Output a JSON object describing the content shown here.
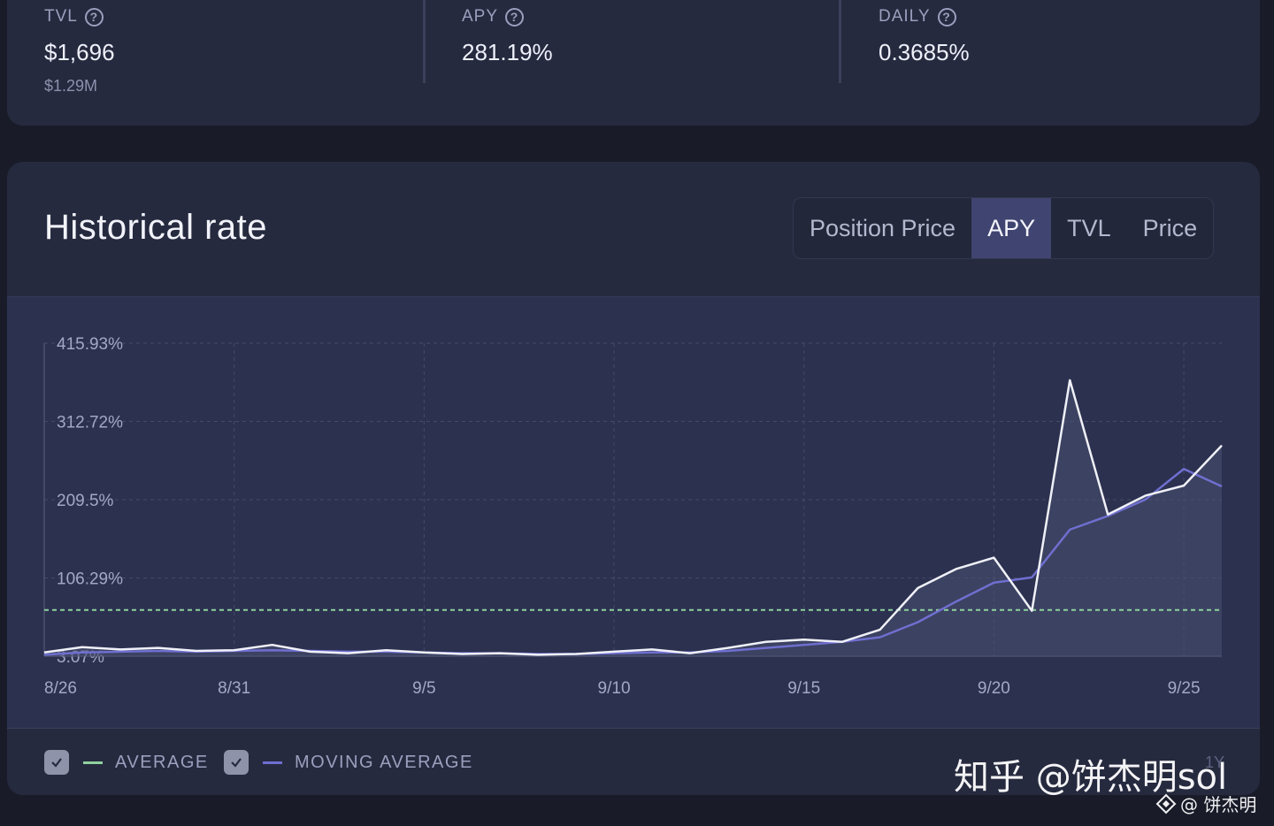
{
  "stats": [
    {
      "label": "TVL",
      "value": "$1,696",
      "sub": "$1.29M"
    },
    {
      "label": "APY",
      "value": "281.19%",
      "sub": ""
    },
    {
      "label": "DAILY",
      "value": "0.3685%",
      "sub": ""
    }
  ],
  "help_glyph": "?",
  "section": {
    "title": "Historical rate"
  },
  "tabs": [
    {
      "label": "Position Price",
      "active": false
    },
    {
      "label": "APY",
      "active": true
    },
    {
      "label": "TVL",
      "active": false
    },
    {
      "label": "Price",
      "active": false
    }
  ],
  "legend": [
    {
      "label": "AVERAGE",
      "color": "#8fd19e",
      "checked": true
    },
    {
      "label": "MOVING AVERAGE",
      "color": "#6f6fd0",
      "checked": true
    }
  ],
  "chart_data": {
    "type": "line",
    "x": [
      "8/26",
      "8/27",
      "8/28",
      "8/29",
      "8/30",
      "8/31",
      "9/1",
      "9/2",
      "9/3",
      "9/4",
      "9/5",
      "9/6",
      "9/7",
      "9/8",
      "9/9",
      "9/10",
      "9/11",
      "9/12",
      "9/13",
      "9/14",
      "9/15",
      "9/16",
      "9/17",
      "9/18",
      "9/19",
      "9/20",
      "9/21",
      "9/22",
      "9/23",
      "9/24",
      "9/25",
      "9/26"
    ],
    "x_tick_labels": [
      "8/26",
      "8/31",
      "9/5",
      "9/10",
      "9/15",
      "9/20",
      "9/25"
    ],
    "y_tick_labels": [
      "415.93%",
      "312.72%",
      "209.5%",
      "106.29%",
      "3.07%"
    ],
    "ylim": [
      3.07,
      415.93
    ],
    "grid": true,
    "series": [
      {
        "color": "#f0f1f8",
        "values": [
          8,
          15,
          12,
          14,
          10,
          11,
          18,
          9,
          7,
          11,
          8,
          6,
          7,
          5,
          6,
          9,
          12,
          7,
          14,
          22,
          25,
          22,
          38,
          93,
          118,
          133,
          63,
          367,
          190,
          215,
          228,
          281
        ]
      },
      {
        "color": "#6f6fd0",
        "values": [
          5,
          8,
          9,
          10,
          9,
          10,
          11,
          10,
          9,
          9,
          8,
          7,
          7,
          6,
          6,
          7,
          8,
          8,
          10,
          14,
          18,
          22,
          28,
          48,
          75,
          100,
          107,
          170,
          188,
          210,
          250,
          227
        ]
      }
    ],
    "average_line": {
      "color": "#8fd19e",
      "value": 64
    }
  },
  "watermark": {
    "big": "知乎 @饼杰明sol",
    "small": "@ 饼杰明",
    "faint": "1Y"
  }
}
